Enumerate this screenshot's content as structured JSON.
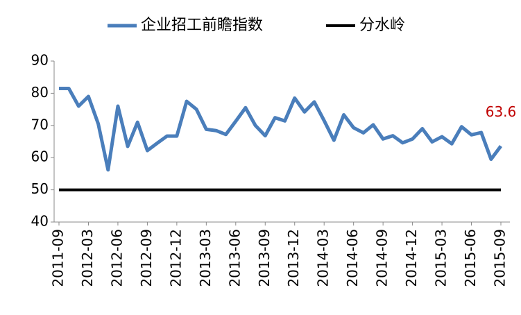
{
  "chart_data": {
    "type": "line",
    "categories": [
      "2011-09",
      null,
      null,
      "2012-03",
      null,
      null,
      "2012-06",
      null,
      null,
      "2012-09",
      null,
      null,
      "2012-12",
      null,
      null,
      "2013-03",
      null,
      null,
      "2013-06",
      null,
      null,
      "2013-09",
      null,
      null,
      "2013-12",
      null,
      null,
      "2014-03",
      null,
      null,
      "2014-06",
      null,
      null,
      "2014-09",
      null,
      null,
      "2014-12",
      null,
      null,
      "2015-03",
      null,
      null,
      "2015-06",
      null,
      null,
      "2015-09"
    ],
    "series": [
      {
        "name": "企业招工前瞻指数",
        "color": "#4a7ebb",
        "values": [
          81.5,
          81.5,
          76,
          79,
          70.5,
          56.2,
          76,
          63.5,
          71,
          62.2,
          64.5,
          66.7,
          66.7,
          77.5,
          75,
          68.8,
          68.4,
          67.2,
          71.3,
          75.5,
          70,
          66.8,
          72.4,
          71.4,
          78.5,
          74.2,
          77.3,
          71.5,
          65.4,
          73.3,
          69.3,
          67.7,
          70.2,
          65.8,
          66.8,
          64.6,
          65.8,
          69,
          64.9,
          66.5,
          64.3,
          69.6,
          67.1,
          67.8,
          59.5,
          63.6
        ]
      },
      {
        "name": "分水岭",
        "color": "#000000",
        "values": [
          50,
          50,
          50,
          50,
          50,
          50,
          50,
          50,
          50,
          50,
          50,
          50,
          50,
          50,
          50,
          50,
          50,
          50,
          50,
          50,
          50,
          50,
          50,
          50,
          50,
          50,
          50,
          50,
          50,
          50,
          50,
          50,
          50,
          50,
          50,
          50,
          50,
          50,
          50,
          50,
          50,
          50,
          50,
          50,
          50,
          50
        ]
      }
    ],
    "ylim": [
      40,
      90
    ],
    "yticks": [
      40,
      50,
      60,
      70,
      80,
      90
    ],
    "legend": "top",
    "label_color": "#c00000"
  }
}
